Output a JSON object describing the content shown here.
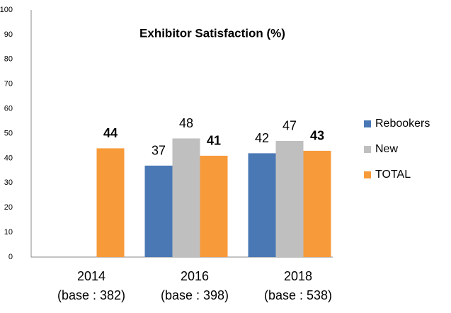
{
  "chart_data": {
    "type": "bar",
    "title": "Exhibitor Satisfaction (%)",
    "categories": [
      [
        "2014",
        "(base : 382)"
      ],
      [
        "2016",
        "(base : 398)"
      ],
      [
        "2018",
        "(base : 538)"
      ]
    ],
    "series": [
      {
        "name": "Rebookers",
        "color": "#4a78b5",
        "values": [
          null,
          37,
          42
        ]
      },
      {
        "name": "New",
        "color": "#bfbfbf",
        "values": [
          null,
          48,
          47
        ]
      },
      {
        "name": "TOTAL",
        "color": "#f79a3a",
        "values": [
          44,
          41,
          43
        ],
        "bold": true
      }
    ],
    "ylim": [
      0,
      100
    ],
    "yticks": [
      0,
      10,
      20,
      30,
      40,
      50,
      60,
      70,
      80,
      90,
      100
    ],
    "grid": false,
    "legend": "right"
  }
}
